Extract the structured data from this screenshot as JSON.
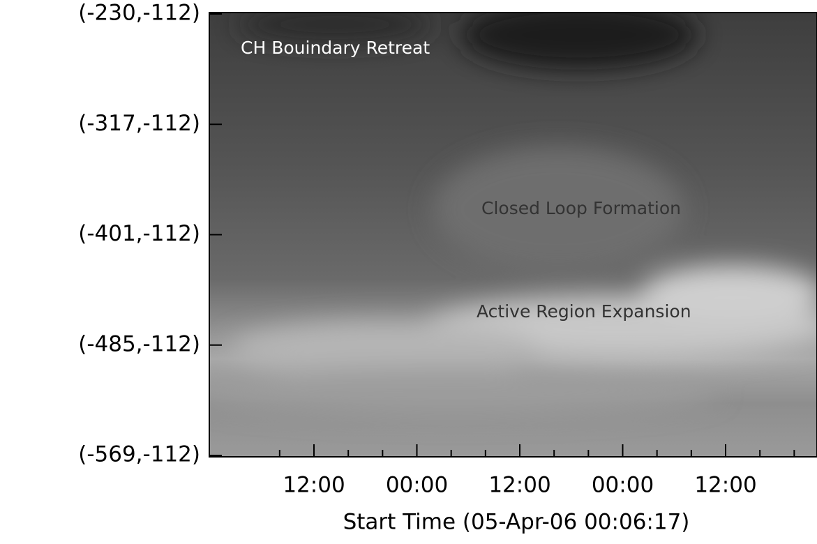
{
  "chart_data": {
    "type": "image",
    "y_labels": [
      "(-230,-112)",
      "(-317,-112)",
      "(-401,-112)",
      "(-485,-112)",
      "(-569,-112)"
    ],
    "x_labels": [
      "12:00",
      "00:00",
      "12:00",
      "00:00",
      "12:00"
    ],
    "xlabel": "Start Time (05-Apr-06 00:06:17)",
    "annotations": [
      {
        "text": "CH Bouindary Retreat",
        "color": "#ffffff"
      },
      {
        "text": "Closed Loop Formation",
        "color": "#333333"
      },
      {
        "text": "Active Region Expansion",
        "color": "#333333"
      }
    ]
  }
}
